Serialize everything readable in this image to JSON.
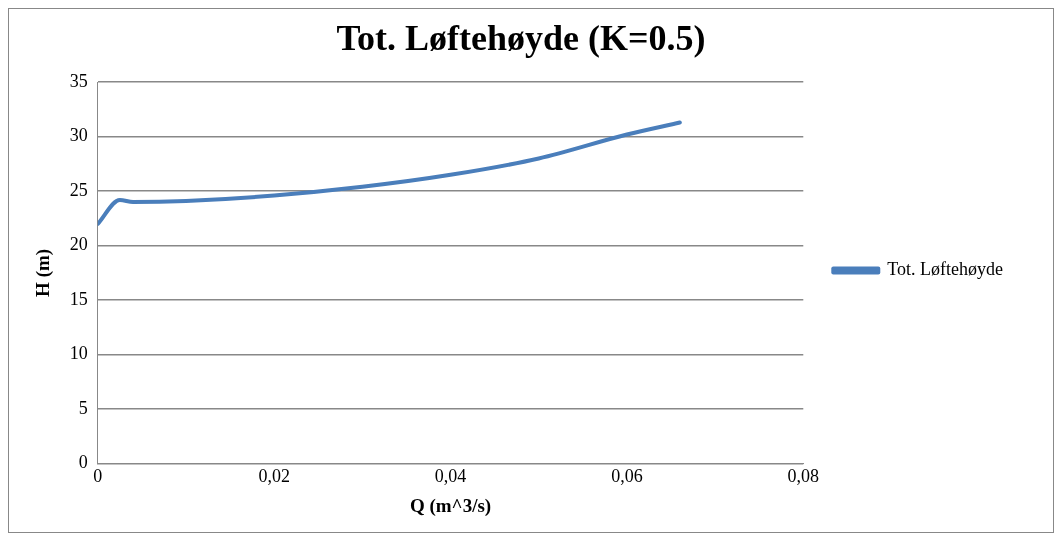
{
  "chart_data": {
    "type": "line",
    "title": "Tot. Løftehøyde (K=0.5)",
    "xlabel": "Q (m^3/s)",
    "ylabel": "H (m)",
    "x": [
      0,
      0.0025,
      0.004,
      0.01,
      0.02,
      0.03,
      0.04,
      0.05,
      0.06,
      0.066
    ],
    "series": [
      {
        "name": "Tot. Løftehøyde",
        "color": "#4a7ebb",
        "values": [
          22,
          24.2,
          24,
          24.1,
          24.6,
          25.4,
          26.5,
          28,
          30.2,
          31.3
        ]
      }
    ],
    "xlim": [
      0,
      0.08
    ],
    "xticks": [
      0,
      {
        "value": 0.02,
        "label": "0,02"
      },
      {
        "value": 0.04,
        "label": "0,04"
      },
      {
        "value": 0.06,
        "label": "0,06"
      },
      {
        "value": 0.08,
        "label": "0,08"
      }
    ],
    "ylim": [
      0,
      35
    ],
    "yticks": [
      0,
      5,
      10,
      15,
      20,
      25,
      30,
      35
    ],
    "grid": "y",
    "legend": "right",
    "marker": "none",
    "line_style": "solid"
  }
}
